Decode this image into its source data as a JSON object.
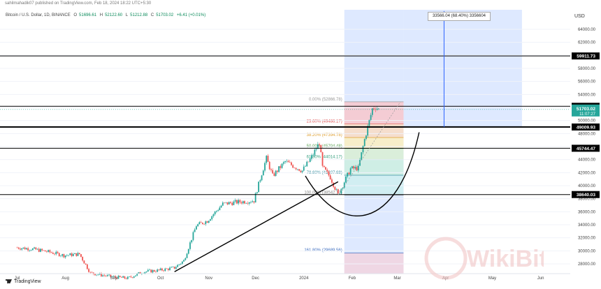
{
  "publisher": "sahilmahadik07 published on TradingView.com, Feb 18, 2024 18:22 UTC+5:30",
  "symbol": "Bitcoin / U.S. Dollar, 1D, BINANCE",
  "ohlc": {
    "o_label": "O",
    "o": "51696.61",
    "h_label": "H",
    "h": "52122.60",
    "l_label": "L",
    "l": "51212.88",
    "c_label": "C",
    "c": "51703.02",
    "change": "+6.41 (+0.01%)"
  },
  "currency": "USD",
  "brand": "TradingView",
  "measure_label": "33566.04 (68.40%) 3356604",
  "watermark": "WikiBit",
  "colors": {
    "up": "#26a69a",
    "down": "#ef5350",
    "blue_zone": "#d6e3ff",
    "line": "#000000"
  },
  "chart_data": {
    "type": "candlestick",
    "x_ticks": [
      "Jul",
      "Aug",
      "Sep",
      "Oct",
      "Nov",
      "Dec",
      "2024",
      "Feb",
      "Mar",
      "Apr",
      "May",
      "Jun"
    ],
    "y_ticks": [
      28000,
      30000,
      32000,
      34000,
      36000,
      38000,
      40000,
      42000,
      44000,
      46000,
      48000,
      50000,
      52000,
      54000,
      56000,
      58000,
      60000,
      62000,
      64000
    ],
    "ylim": [
      26500,
      67000
    ],
    "horizontal_levels": [
      {
        "value": 59911.73,
        "label": "59911.73"
      },
      {
        "value": 52184.88,
        "label": "52184.88"
      },
      {
        "value": 49009.93,
        "label": "49009.93"
      },
      {
        "value": 45744.47,
        "label": "45744.47"
      },
      {
        "value": 38640.03,
        "label": "38640.03"
      }
    ],
    "current_price": {
      "value": 51703.02,
      "label": "51703.02",
      "countdown": "11:07:27"
    },
    "fibonacci": [
      {
        "level": "0.00%",
        "price": "52866.78"
      },
      {
        "level": "23.60%",
        "price": "49486.17"
      },
      {
        "level": "38.20%",
        "price": "47394.78"
      },
      {
        "level": "50.00%",
        "price": "45704.48"
      },
      {
        "level": "61.80%",
        "price": "44014.17"
      },
      {
        "level": "78.60%",
        "price": "41607.68"
      },
      {
        "level": "100.00%",
        "price": "38542.17"
      },
      {
        "level": "161.80%",
        "price": "29689.56"
      }
    ],
    "price_path": [
      [
        "2023-07-01",
        30500
      ],
      [
        "2023-07-10",
        30300
      ],
      [
        "2023-07-20",
        29900
      ],
      [
        "2023-07-31",
        29300
      ],
      [
        "2023-08-10",
        29500
      ],
      [
        "2023-08-17",
        26600
      ],
      [
        "2023-08-31",
        26000
      ],
      [
        "2023-09-10",
        25800
      ],
      [
        "2023-09-20",
        26800
      ],
      [
        "2023-09-30",
        27000
      ],
      [
        "2023-10-10",
        27400
      ],
      [
        "2023-10-16",
        28500
      ],
      [
        "2023-10-24",
        33900
      ],
      [
        "2023-10-31",
        34600
      ],
      [
        "2023-11-10",
        37200
      ],
      [
        "2023-11-20",
        37500
      ],
      [
        "2023-11-30",
        37700
      ],
      [
        "2023-12-05",
        41900
      ],
      [
        "2023-12-08",
        44200
      ],
      [
        "2023-12-12",
        41500
      ],
      [
        "2023-12-20",
        43700
      ],
      [
        "2023-12-31",
        42300
      ],
      [
        "2024-01-05",
        44000
      ],
      [
        "2024-01-11",
        46600
      ],
      [
        "2024-01-13",
        42800
      ],
      [
        "2024-01-18",
        41300
      ],
      [
        "2024-01-23",
        38600
      ],
      [
        "2024-01-31",
        42600
      ],
      [
        "2024-02-05",
        42700
      ],
      [
        "2024-02-09",
        47100
      ],
      [
        "2024-02-12",
        49900
      ],
      [
        "2024-02-14",
        51800
      ],
      [
        "2024-02-16",
        52100
      ],
      [
        "2024-02-18",
        51703
      ]
    ]
  }
}
